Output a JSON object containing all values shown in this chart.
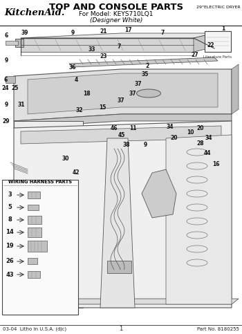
{
  "title": "TOP AND CONSOLE PARTS",
  "subtitle_line1": "For Model: KEYS710LQ1",
  "subtitle_line2": "(Designer White)",
  "brand": "KitchenAid.",
  "appliance_type": "29\"ELECTRIC DRYER",
  "footer_left": "03-04  Litho in U.S.A. (djc)",
  "footer_center": "1",
  "footer_right": "Part No. 8180255",
  "wiring_box_title": "WIRING HARNESS PARTS",
  "wiring_items": [
    "3",
    "5",
    "8",
    "14",
    "19",
    "26",
    "43"
  ],
  "bg_color": "#ffffff",
  "text_color": "#000000",
  "fig_width": 3.5,
  "fig_height": 4.83,
  "dpi": 100
}
